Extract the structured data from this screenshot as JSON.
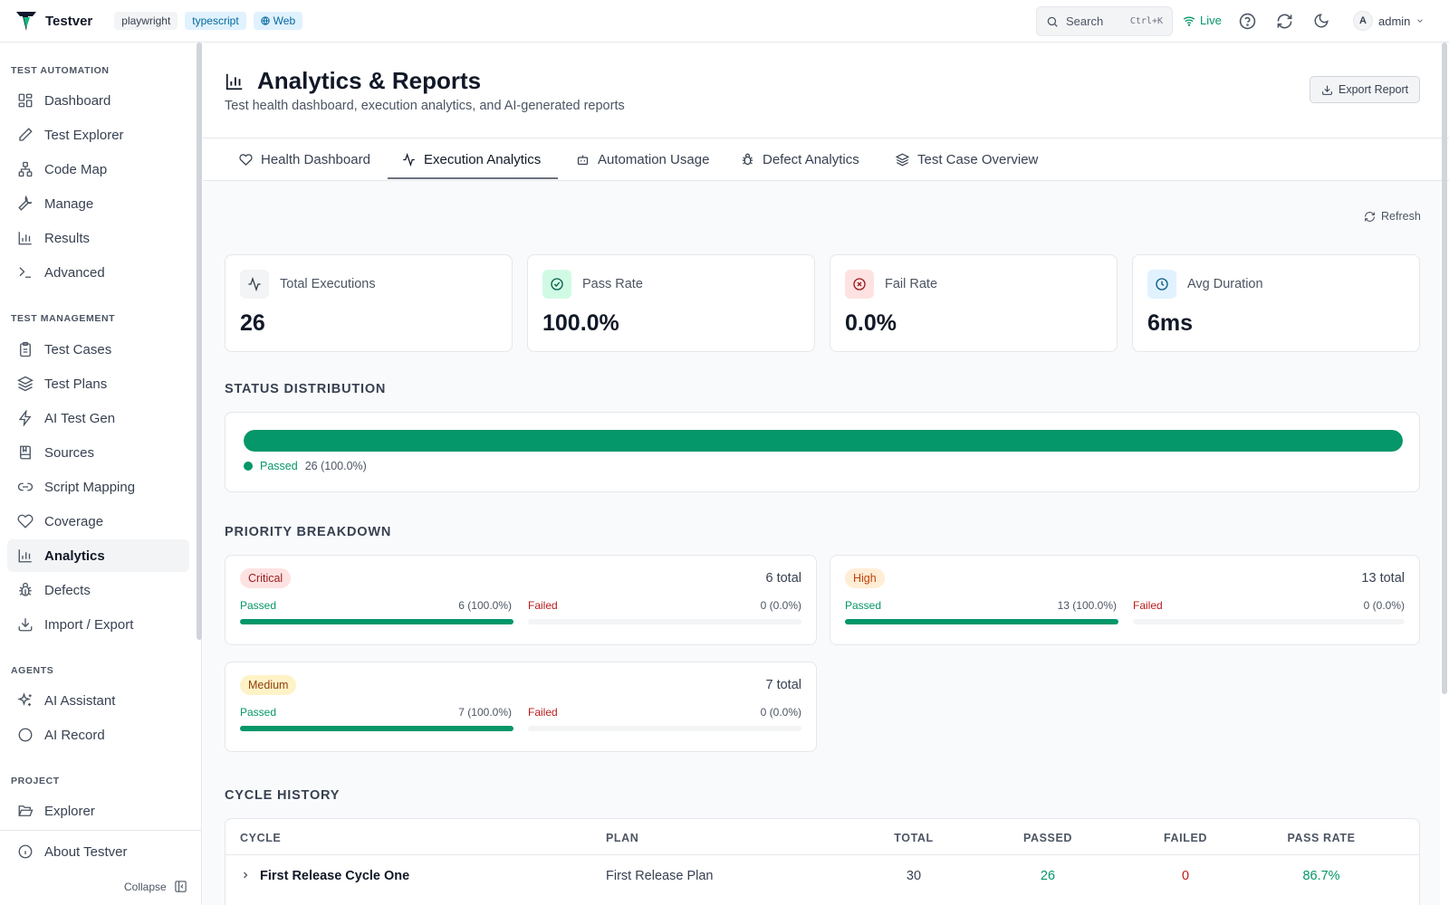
{
  "app": {
    "name": "Testver",
    "chips": [
      "playwright",
      "typescript",
      "Web"
    ],
    "search_label": "Search",
    "search_shortcut": "Ctrl+K",
    "live_label": "Live",
    "user_initial": "A",
    "user_name": "admin"
  },
  "sidebar": {
    "sections": [
      {
        "label": "TEST AUTOMATION",
        "items": [
          "Dashboard",
          "Test Explorer",
          "Code Map",
          "Manage",
          "Results",
          "Advanced"
        ]
      },
      {
        "label": "TEST MANAGEMENT",
        "items": [
          "Test Cases",
          "Test Plans",
          "AI Test Gen",
          "Sources",
          "Script Mapping",
          "Coverage",
          "Analytics",
          "Defects",
          "Import / Export"
        ]
      },
      {
        "label": "AGENTS",
        "items": [
          "AI Assistant",
          "AI Record"
        ]
      },
      {
        "label": "PROJECT",
        "items": [
          "Explorer"
        ]
      }
    ],
    "active_item": "Analytics",
    "about": "About Testver",
    "collapse": "Collapse"
  },
  "page": {
    "title": "Analytics & Reports",
    "subtitle": "Test health dashboard, execution analytics, and AI-generated reports",
    "export_label": "Export Report"
  },
  "tabs": [
    "Health Dashboard",
    "Execution Analytics",
    "Automation Usage",
    "Defect Analytics",
    "Test Case Overview"
  ],
  "active_tab": "Execution Analytics",
  "refresh_label": "Refresh",
  "stats": [
    {
      "label": "Total Executions",
      "value": "26",
      "icon": "activity-icon"
    },
    {
      "label": "Pass Rate",
      "value": "100.0%",
      "icon": "check-circle-icon"
    },
    {
      "label": "Fail Rate",
      "value": "0.0%",
      "icon": "x-circle-icon"
    },
    {
      "label": "Avg Duration",
      "value": "6ms",
      "icon": "clock-icon"
    }
  ],
  "status_distribution": {
    "title": "STATUS DISTRIBUTION",
    "legend_label": "Passed",
    "legend_value": "26 (100.0%)",
    "passed_fraction": 1.0
  },
  "priority": {
    "title": "PRIORITY BREAKDOWN",
    "items": [
      {
        "name": "Critical",
        "total": "6 total",
        "passed_label": "Passed",
        "passed_value": "6 (100.0%)",
        "failed_label": "Failed",
        "failed_value": "0 (0.0%)",
        "passed_fraction": 1.0,
        "failed_fraction": 0.0
      },
      {
        "name": "High",
        "total": "13 total",
        "passed_label": "Passed",
        "passed_value": "13 (100.0%)",
        "failed_label": "Failed",
        "failed_value": "0 (0.0%)",
        "passed_fraction": 1.0,
        "failed_fraction": 0.0
      },
      {
        "name": "Medium",
        "total": "7 total",
        "passed_label": "Passed",
        "passed_value": "7 (100.0%)",
        "failed_label": "Failed",
        "failed_value": "0 (0.0%)",
        "passed_fraction": 1.0,
        "failed_fraction": 0.0
      }
    ]
  },
  "cycle_history": {
    "title": "CYCLE HISTORY",
    "columns": [
      "CYCLE",
      "PLAN",
      "TOTAL",
      "PASSED",
      "FAILED",
      "PASS RATE"
    ],
    "rows": [
      {
        "cycle": "First Release Cycle One",
        "plan": "First Release Plan",
        "total": "30",
        "passed": "26",
        "failed": "0",
        "pass_rate": "86.7%"
      }
    ]
  },
  "colors": {
    "accent_green": "#059669",
    "fail_red": "#b91c1c",
    "critical_bg": "#fee2e2",
    "high_bg": "#ffedd5",
    "medium_bg": "#fef3c7"
  }
}
